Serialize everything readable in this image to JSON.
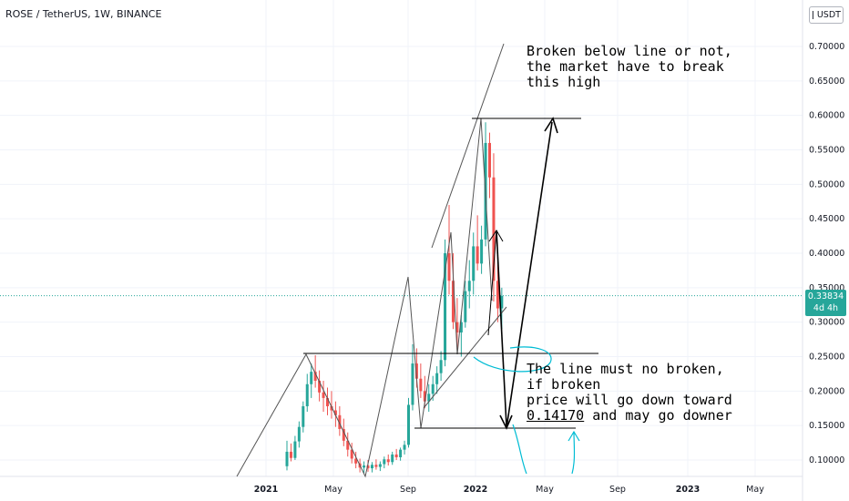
{
  "header": {
    "title": "ROSE / TetherUS, 1W, BINANCE"
  },
  "price_axis": {
    "currency_label": "USDT",
    "ticks": [
      "0.70000",
      "0.65000",
      "0.60000",
      "0.55000",
      "0.50000",
      "0.45000",
      "0.40000",
      "0.35000",
      "0.30000",
      "0.25000",
      "0.20000",
      "0.15000",
      "0.10000"
    ],
    "current_price": "0.33834",
    "countdown": "4d 4h"
  },
  "time_axis": {
    "ticks": [
      {
        "label": "2021",
        "bold": true
      },
      {
        "label": "May",
        "bold": false
      },
      {
        "label": "Sep",
        "bold": false
      },
      {
        "label": "2022",
        "bold": true
      },
      {
        "label": "May",
        "bold": false
      },
      {
        "label": "Sep",
        "bold": false
      },
      {
        "label": "2023",
        "bold": true
      },
      {
        "label": "May",
        "bold": false
      }
    ]
  },
  "annotations": {
    "top_note": [
      "Broken below line or not,",
      "the market have to break",
      "this high"
    ],
    "bottom_note_line1": "The line must no broken,",
    "bottom_note_line2": "if broken",
    "bottom_note_line3": "price will go down toward",
    "bottom_note_level": "0.14170",
    "bottom_note_tail": " and may go downer"
  },
  "colors": {
    "up": "#26a69a",
    "down": "#ef5350",
    "current_price_line": "#26a69a",
    "drawing": "#000000",
    "freehand": "#00bcd4"
  },
  "chart_data": {
    "type": "candlestick",
    "title": "ROSE / TetherUS, 1W, BINANCE",
    "interval": "1W",
    "ylim": [
      0.08,
      0.74
    ],
    "current_price": 0.33834,
    "key_levels": {
      "resistance_high": 0.5966,
      "support_line": 0.2532,
      "target_low": 0.1417
    },
    "candles": [
      [
        0.091,
        0.128,
        0.085,
        0.112
      ],
      [
        0.112,
        0.124,
        0.098,
        0.103
      ],
      [
        0.103,
        0.135,
        0.1,
        0.127
      ],
      [
        0.127,
        0.156,
        0.118,
        0.148
      ],
      [
        0.148,
        0.185,
        0.14,
        0.178
      ],
      [
        0.178,
        0.225,
        0.17,
        0.21
      ],
      [
        0.21,
        0.24,
        0.19,
        0.228
      ],
      [
        0.228,
        0.252,
        0.205,
        0.215
      ],
      [
        0.215,
        0.23,
        0.185,
        0.198
      ],
      [
        0.198,
        0.215,
        0.17,
        0.19
      ],
      [
        0.19,
        0.205,
        0.165,
        0.178
      ],
      [
        0.178,
        0.2,
        0.16,
        0.172
      ],
      [
        0.172,
        0.185,
        0.148,
        0.165
      ],
      [
        0.165,
        0.178,
        0.135,
        0.145
      ],
      [
        0.145,
        0.16,
        0.12,
        0.128
      ],
      [
        0.128,
        0.14,
        0.105,
        0.115
      ],
      [
        0.115,
        0.125,
        0.095,
        0.102
      ],
      [
        0.102,
        0.112,
        0.088,
        0.095
      ],
      [
        0.095,
        0.102,
        0.082,
        0.089
      ],
      [
        0.089,
        0.098,
        0.081,
        0.092
      ],
      [
        0.092,
        0.1,
        0.083,
        0.088
      ],
      [
        0.088,
        0.097,
        0.082,
        0.093
      ],
      [
        0.093,
        0.101,
        0.086,
        0.09
      ],
      [
        0.09,
        0.098,
        0.084,
        0.094
      ],
      [
        0.094,
        0.105,
        0.088,
        0.101
      ],
      [
        0.101,
        0.108,
        0.092,
        0.097
      ],
      [
        0.097,
        0.112,
        0.093,
        0.108
      ],
      [
        0.108,
        0.116,
        0.1,
        0.104
      ],
      [
        0.104,
        0.118,
        0.099,
        0.115
      ],
      [
        0.115,
        0.128,
        0.108,
        0.122
      ],
      [
        0.122,
        0.19,
        0.118,
        0.18
      ],
      [
        0.18,
        0.268,
        0.172,
        0.24
      ],
      [
        0.24,
        0.262,
        0.205,
        0.218
      ],
      [
        0.218,
        0.24,
        0.19,
        0.2
      ],
      [
        0.2,
        0.222,
        0.175,
        0.185
      ],
      [
        0.185,
        0.21,
        0.17,
        0.196
      ],
      [
        0.196,
        0.222,
        0.186,
        0.21
      ],
      [
        0.21,
        0.236,
        0.196,
        0.226
      ],
      [
        0.226,
        0.258,
        0.215,
        0.245
      ],
      [
        0.245,
        0.42,
        0.236,
        0.4
      ],
      [
        0.4,
        0.47,
        0.34,
        0.36
      ],
      [
        0.36,
        0.4,
        0.29,
        0.3
      ],
      [
        0.3,
        0.335,
        0.26,
        0.285
      ],
      [
        0.285,
        0.31,
        0.25,
        0.3
      ],
      [
        0.3,
        0.36,
        0.292,
        0.345
      ],
      [
        0.345,
        0.39,
        0.32,
        0.36
      ],
      [
        0.36,
        0.43,
        0.34,
        0.41
      ],
      [
        0.41,
        0.455,
        0.375,
        0.385
      ],
      [
        0.385,
        0.44,
        0.37,
        0.42
      ],
      [
        0.42,
        0.59,
        0.41,
        0.56
      ],
      [
        0.56,
        0.575,
        0.48,
        0.51
      ],
      [
        0.51,
        0.545,
        0.33,
        0.36
      ],
      [
        0.36,
        0.395,
        0.3,
        0.32
      ],
      [
        0.32,
        0.35,
        0.29,
        0.338
      ]
    ]
  }
}
